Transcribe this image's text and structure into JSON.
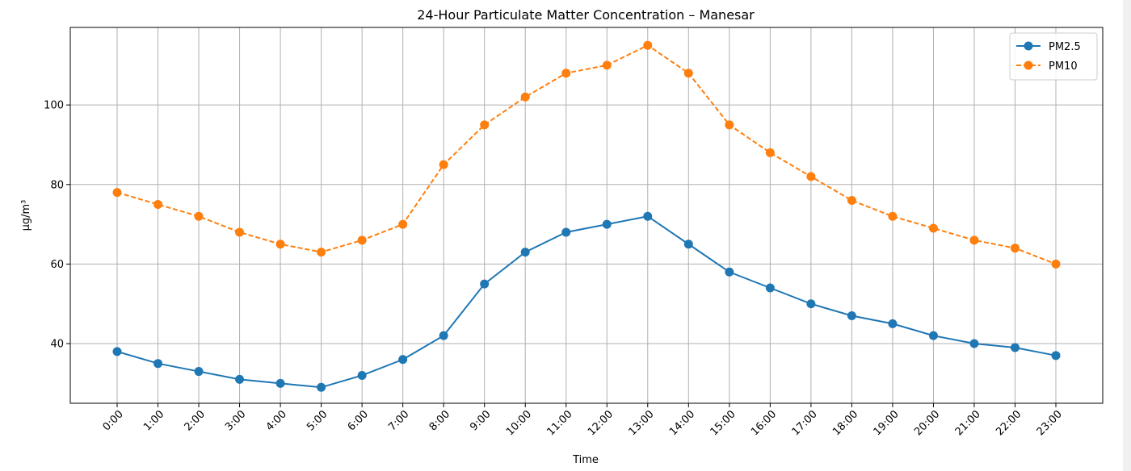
{
  "chart_data": {
    "type": "line",
    "title": "24-Hour Particulate Matter Concentration – Manesar",
    "xlabel": "Time",
    "ylabel": "µg/m³",
    "categories": [
      "0:00",
      "1:00",
      "2:00",
      "3:00",
      "4:00",
      "5:00",
      "6:00",
      "7:00",
      "8:00",
      "9:00",
      "10:00",
      "11:00",
      "12:00",
      "13:00",
      "14:00",
      "15:00",
      "16:00",
      "17:00",
      "18:00",
      "19:00",
      "20:00",
      "21:00",
      "22:00",
      "23:00"
    ],
    "ylim": [
      25,
      119.5
    ],
    "yticks": [
      40,
      60,
      80,
      100
    ],
    "grid": true,
    "legend_position": "top-right",
    "series": [
      {
        "name": "PM2.5",
        "color": "#1f77b4",
        "linestyle": "solid",
        "marker": "circle",
        "values": [
          38,
          35,
          33,
          31,
          30,
          29,
          32,
          36,
          42,
          55,
          63,
          68,
          70,
          72,
          65,
          58,
          54,
          50,
          47,
          45,
          42,
          40,
          39,
          37
        ]
      },
      {
        "name": "PM10",
        "color": "#ff7f0e",
        "linestyle": "dashed",
        "marker": "circle",
        "values": [
          78,
          75,
          72,
          68,
          65,
          63,
          66,
          70,
          85,
          95,
          102,
          108,
          110,
          115,
          108,
          95,
          88,
          82,
          76,
          72,
          69,
          66,
          64,
          60
        ]
      }
    ]
  }
}
